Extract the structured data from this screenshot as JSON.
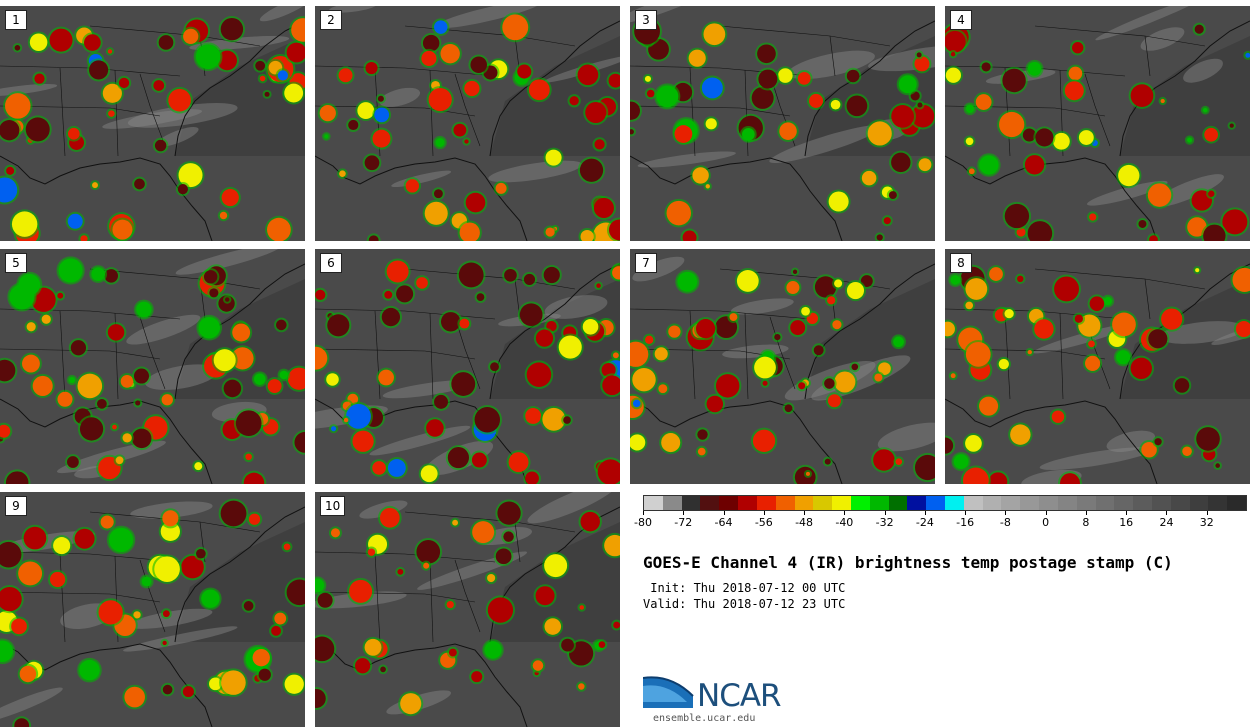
{
  "panels": [
    {
      "label": "1"
    },
    {
      "label": "2"
    },
    {
      "label": "3"
    },
    {
      "label": "4"
    },
    {
      "label": "5"
    },
    {
      "label": "6"
    },
    {
      "label": "7"
    },
    {
      "label": "8"
    },
    {
      "label": "9"
    },
    {
      "label": "10"
    }
  ],
  "colorbar": {
    "colors": [
      "#d0d0d0",
      "#8a8a8a",
      "#303030",
      "#521010",
      "#6e0000",
      "#b00000",
      "#e82000",
      "#f06000",
      "#f0a000",
      "#d8c800",
      "#f0f000",
      "#00f000",
      "#00b800",
      "#007000",
      "#0010a0",
      "#0060f0",
      "#00f0f0",
      "#c0c0c0",
      "#b0b0b0",
      "#a4a4a4",
      "#989898",
      "#8e8e8e",
      "#848484",
      "#7a7a7a",
      "#707070",
      "#666666",
      "#5c5c5c",
      "#525252",
      "#484848",
      "#3e3e3e",
      "#343434",
      "#2a2a2a"
    ],
    "ticks": [
      "-80",
      "-72",
      "-64",
      "-56",
      "-48",
      "-40",
      "-32",
      "-24",
      "-16",
      "-8",
      "0",
      "8",
      "16",
      "24",
      "32"
    ],
    "tick_values": [
      -80,
      -72,
      -64,
      -56,
      -48,
      -40,
      -32,
      -24,
      -16,
      -8,
      0,
      8,
      16,
      24,
      32
    ],
    "min": -80,
    "max": 40
  },
  "title": "GOES-E Channel 4 (IR) brightness temp postage stamp (C)",
  "init": " Init: Thu 2018-07-12 00 UTC",
  "valid": "Valid: Thu 2018-07-12 23 UTC",
  "logo": {
    "text": "NCAR",
    "url": "ensemble.ucar.edu"
  }
}
